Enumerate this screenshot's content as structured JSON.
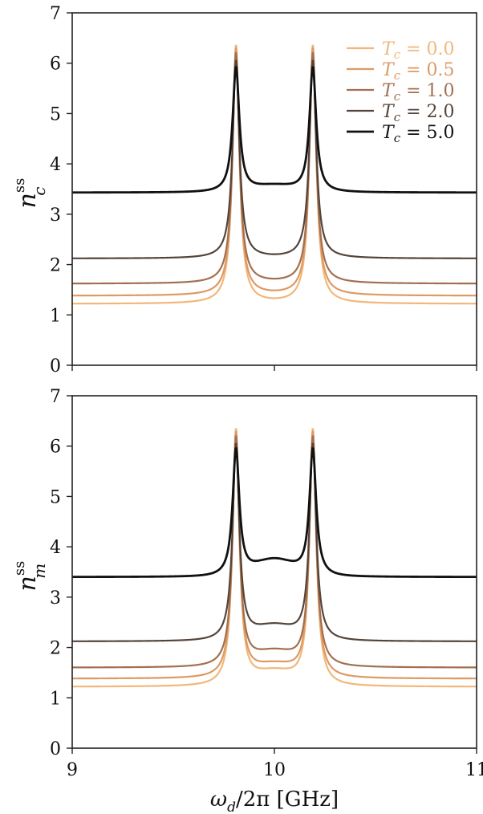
{
  "chart_data": [
    {
      "type": "line",
      "ylabel": "n_c^ss",
      "ylabel_parts": {
        "base": "n",
        "sub": "c",
        "sup": "ss"
      },
      "xlim": [
        9,
        11
      ],
      "ylim": [
        0,
        7
      ],
      "yticks": [
        "0",
        "1",
        "2",
        "3",
        "4",
        "5",
        "6",
        "7"
      ],
      "xticks_shown": false,
      "legend": {
        "placement": "top-right",
        "entries": [
          {
            "prefix": "T",
            "sub": "c",
            "text": " = 0.0"
          },
          {
            "prefix": "T",
            "sub": "c",
            "text": " = 0.5"
          },
          {
            "prefix": "T",
            "sub": "c",
            "text": " = 1.0"
          },
          {
            "prefix": "T",
            "sub": "c",
            "text": " = 2.0"
          },
          {
            "prefix": "T",
            "sub": "c",
            "text": " = 5.0"
          }
        ]
      },
      "series": [
        {
          "name": "T_c = 0.0",
          "color": "#f2b779",
          "baseline": 1.22,
          "peak": 6.35,
          "valley": 1.22
        },
        {
          "name": "T_c = 0.5",
          "color": "#dd9a63",
          "baseline": 1.38,
          "peak": 6.3,
          "valley": 1.38
        },
        {
          "name": "T_c = 1.0",
          "color": "#a27050",
          "baseline": 1.62,
          "peak": 6.2,
          "valley": 1.62
        },
        {
          "name": "T_c = 2.0",
          "color": "#56443a",
          "baseline": 2.12,
          "peak": 6.05,
          "valley": 2.12
        },
        {
          "name": "T_c = 5.0",
          "color": "#111111",
          "baseline": 3.43,
          "peak": 5.9,
          "valley": 3.55
        }
      ],
      "peaks_x": [
        9.81,
        10.19
      ]
    },
    {
      "type": "line",
      "ylabel": "n_m^ss",
      "ylabel_parts": {
        "base": "n",
        "sub": "m",
        "sup": "ss"
      },
      "xlabel": "ω_d/2π [GHz]",
      "xlabel_parts": {
        "omega": "ω",
        "sub": "d",
        "rest": "/2π [GHz]"
      },
      "xlim": [
        9,
        11
      ],
      "ylim": [
        0,
        7
      ],
      "xticks": [
        "9",
        "10",
        "11"
      ],
      "yticks": [
        "0",
        "1",
        "2",
        "3",
        "4",
        "5",
        "6",
        "7"
      ],
      "series": [
        {
          "name": "T_c = 0.0",
          "color": "#f2b779",
          "baseline": 1.22,
          "peak": 6.3,
          "valley": 1.48
        },
        {
          "name": "T_c = 0.5",
          "color": "#dd9a63",
          "baseline": 1.38,
          "peak": 6.25,
          "valley": 1.62
        },
        {
          "name": "T_c = 1.0",
          "color": "#a27050",
          "baseline": 1.6,
          "peak": 6.15,
          "valley": 1.88
        },
        {
          "name": "T_c = 2.0",
          "color": "#56443a",
          "baseline": 2.12,
          "peak": 6.0,
          "valley": 2.4
        },
        {
          "name": "T_c = 5.0",
          "color": "#111111",
          "baseline": 3.4,
          "peak": 5.9,
          "valley": 3.72
        }
      ],
      "peaks_x": [
        9.81,
        10.19
      ]
    }
  ]
}
